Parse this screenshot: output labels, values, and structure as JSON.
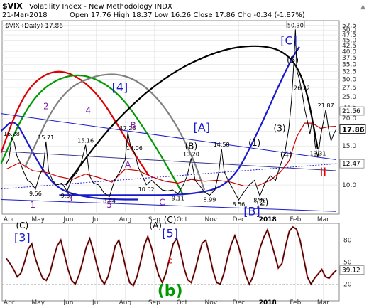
{
  "header": {
    "symbol": "$VIX",
    "title": "Volatility Index - New Methodology INDX",
    "date": "21-Mar-2018",
    "quote": "Open 17.76 High 18.37 Low 16.26 Close 17.86 Chg -0.34 (-1.87%)",
    "legend": "$VIX (Daily) 17.86",
    "up_arrow": "▲"
  },
  "colors": {
    "price": "#000000",
    "blue": "#0000cc",
    "red": "#dd0000",
    "green": "#009900",
    "gray": "#808080",
    "black": "#000000",
    "slate": "#3a3a8a",
    "ma": "#cc0000",
    "osc": "#000000"
  },
  "chart_data": [
    {
      "type": "line",
      "title": "$VIX Volatility Index - New Methodology INDX",
      "series_label": "$VIX (Daily) 17.86",
      "x_ticks": [
        "Apr",
        "May",
        "Jun",
        "Jul",
        "Aug",
        "Sep",
        "Oct",
        "Nov",
        "Dec",
        "2018",
        "Feb",
        "Mar"
      ],
      "y_ticks": [
        10.0,
        12.5,
        15.0,
        17.5,
        20.0,
        22.5,
        25.0,
        27.5,
        30.0,
        32.5,
        35.0,
        37.5,
        40.0,
        42.5,
        45.0,
        47.5,
        50.0,
        52.5
      ],
      "y_tick_labels": [
        "10.0",
        "12.5",
        "15.0",
        "17.5",
        "20.0",
        "22.5",
        "25.0",
        "27.5",
        "30.0",
        "32.5",
        "35.0",
        "37.5",
        "40.0",
        "42.5",
        "45.0",
        "47.5",
        "50.0",
        "52.5"
      ],
      "ylim": [
        7.5,
        53.5
      ],
      "scale": "log",
      "grid": true,
      "price_points": [
        [
          0,
          12.5
        ],
        [
          2,
          13.2
        ],
        [
          4,
          16.28
        ],
        [
          6,
          15.5
        ],
        [
          8,
          13.5
        ],
        [
          10,
          12.8
        ],
        [
          13,
          11.5
        ],
        [
          16,
          10.5
        ],
        [
          19,
          10.2
        ],
        [
          22,
          9.56
        ],
        [
          25,
          11.0
        ],
        [
          28,
          12.0
        ],
        [
          30,
          15.71
        ],
        [
          32,
          11.5
        ],
        [
          35,
          10.5
        ],
        [
          38,
          10.0
        ],
        [
          42,
          10.2
        ],
        [
          46,
          9.37
        ],
        [
          50,
          10.8
        ],
        [
          54,
          11.5
        ],
        [
          57,
          12.8
        ],
        [
          60,
          15.16
        ],
        [
          63,
          11.0
        ],
        [
          66,
          10.2
        ],
        [
          70,
          10.0
        ],
        [
          74,
          9.2
        ],
        [
          78,
          8.84
        ],
        [
          82,
          10.5
        ],
        [
          86,
          11.5
        ],
        [
          90,
          13.0
        ],
        [
          92,
          17.28
        ],
        [
          94,
          15.0
        ],
        [
          97,
          14.06
        ],
        [
          100,
          12.0
        ],
        [
          103,
          11.0
        ],
        [
          106,
          10.02
        ],
        [
          110,
          10.5
        ],
        [
          114,
          10.0
        ],
        [
          118,
          9.5
        ],
        [
          122,
          9.4
        ],
        [
          126,
          9.5
        ],
        [
          130,
          9.11
        ],
        [
          134,
          10.0
        ],
        [
          137,
          11.0
        ],
        [
          140,
          13.2
        ],
        [
          143,
          10.5
        ],
        [
          146,
          10.0
        ],
        [
          150,
          9.3
        ],
        [
          154,
          8.99
        ],
        [
          158,
          9.5
        ],
        [
          161,
          11.5
        ],
        [
          163,
          14.58
        ],
        [
          165,
          11.5
        ],
        [
          168,
          10.5
        ],
        [
          172,
          9.5
        ],
        [
          176,
          8.56
        ],
        [
          180,
          9.3
        ],
        [
          184,
          10.0
        ],
        [
          188,
          10.5
        ],
        [
          192,
          8.92
        ],
        [
          196,
          10.2
        ],
        [
          200,
          11.0
        ],
        [
          204,
          10.5
        ],
        [
          208,
          12.5
        ],
        [
          211,
          14.0
        ],
        [
          214,
          18.0
        ],
        [
          216,
          24.0
        ],
        [
          218,
          37.0
        ],
        [
          219,
          50.3
        ],
        [
          220,
          33.0
        ],
        [
          222,
          30.0
        ],
        [
          224,
          26.22
        ],
        [
          226,
          22.0
        ],
        [
          228,
          19.5
        ],
        [
          230,
          17.0
        ],
        [
          232,
          20.0
        ],
        [
          234,
          15.0
        ],
        [
          236,
          13.31
        ],
        [
          238,
          16.5
        ],
        [
          240,
          19.0
        ],
        [
          242,
          21.87
        ],
        [
          244,
          18.0
        ],
        [
          246,
          15.8
        ],
        [
          248,
          17.0
        ],
        [
          250,
          17.86
        ]
      ],
      "moving_average": [
        [
          0,
          11.8
        ],
        [
          10,
          12.6
        ],
        [
          20,
          11.6
        ],
        [
          30,
          11.4
        ],
        [
          40,
          10.9
        ],
        [
          50,
          10.6
        ],
        [
          60,
          11.2
        ],
        [
          70,
          10.8
        ],
        [
          80,
          10.3
        ],
        [
          90,
          11.8
        ],
        [
          100,
          11.6
        ],
        [
          110,
          10.9
        ],
        [
          120,
          10.4
        ],
        [
          130,
          10.2
        ],
        [
          140,
          10.6
        ],
        [
          150,
          10.4
        ],
        [
          160,
          10.5
        ],
        [
          170,
          10.3
        ],
        [
          180,
          9.9
        ],
        [
          190,
          9.9
        ],
        [
          200,
          10.5
        ],
        [
          208,
          11.5
        ],
        [
          214,
          12.8
        ],
        [
          220,
          16.5
        ],
        [
          226,
          19.0
        ],
        [
          232,
          19.0
        ],
        [
          238,
          18.0
        ],
        [
          244,
          18.3
        ],
        [
          250,
          18.4
        ]
      ],
      "trendlines": [
        {
          "name": "upper-channel",
          "color": "blue",
          "points": [
            [
              -4,
              21.0
            ],
            [
              250,
              13.0
            ]
          ]
        },
        {
          "name": "lower-channel",
          "color": "blue",
          "points": [
            [
              -4,
              8.6
            ],
            [
              250,
              7.6
            ]
          ]
        },
        {
          "name": "dotted-support",
          "color": "blue",
          "dashed": true,
          "points": [
            [
              -4,
              9.6
            ],
            [
              250,
              12.47
            ]
          ]
        },
        {
          "name": "slate-upper",
          "color": "slate",
          "points": [
            [
              -4,
              14.2
            ],
            [
              250,
              11.6
            ]
          ]
        }
      ],
      "cycle_arcs": [
        {
          "name": "blue-arc-1",
          "color": "blue",
          "points": [
            [
              -4,
              17.5
            ],
            [
              6,
              20.0
            ],
            [
              16,
              15.5
            ],
            [
              28,
              11.5
            ],
            [
              40,
              9.5
            ],
            [
              60,
              8.8
            ],
            [
              80,
              8.6
            ],
            [
              100,
              8.6
            ]
          ]
        },
        {
          "name": "red-arc",
          "color": "red",
          "points": [
            [
              -4,
              14.0
            ],
            [
              8,
              22.0
            ],
            [
              20,
              29.0
            ],
            [
              36,
              33.0
            ],
            [
              52,
              31.5
            ],
            [
              70,
              25.5
            ],
            [
              86,
              18.0
            ],
            [
              98,
              13.5
            ],
            [
              108,
              11.0
            ]
          ]
        },
        {
          "name": "green-arc",
          "color": "green",
          "points": [
            [
              -4,
              12.5
            ],
            [
              16,
              23.0
            ],
            [
              36,
              30.0
            ],
            [
              60,
              32.0
            ],
            [
              86,
              26.0
            ],
            [
              110,
              16.0
            ],
            [
              126,
              11.0
            ],
            [
              134,
              9.0
            ]
          ]
        },
        {
          "name": "gray-arc",
          "color": "gray",
          "points": [
            [
              14,
              12.0
            ],
            [
              40,
              26.0
            ],
            [
              70,
              32.0
            ],
            [
              96,
              31.0
            ],
            [
              120,
              23.0
            ],
            [
              140,
              14.0
            ],
            [
              150,
              9.5
            ]
          ]
        },
        {
          "name": "black-arc",
          "color": "black",
          "points": [
            [
              45,
              10.0
            ],
            [
              80,
              19.0
            ],
            [
              120,
              31.0
            ],
            [
              160,
              40.5
            ],
            [
              190,
              43.0
            ],
            [
              212,
              40.0
            ],
            [
              226,
              30.0
            ],
            [
              236,
              14.5
            ]
          ]
        },
        {
          "name": "blue-arc-2",
          "color": "blue",
          "points": [
            [
              40,
              9.0
            ],
            [
              90,
              9.0
            ],
            [
              140,
              9.0
            ],
            [
              170,
              10.0
            ],
            [
              190,
              17.0
            ],
            [
              205,
              27.0
            ],
            [
              216,
              37.0
            ],
            [
              222,
              42.0
            ]
          ]
        }
      ],
      "price_labels": [
        {
          "text": "16.28",
          "x": 4,
          "y": 16.28
        },
        {
          "text": "15.71",
          "x": 30,
          "y": 15.71
        },
        {
          "text": "9.56",
          "x": 22,
          "y": 9.56
        },
        {
          "text": "15.16",
          "x": 60,
          "y": 15.16
        },
        {
          "text": "9.37",
          "x": 46,
          "y": 9.37
        },
        {
          "text": "8.84",
          "x": 78,
          "y": 8.84
        },
        {
          "text": "17.28",
          "x": 92,
          "y": 17.28
        },
        {
          "text": "14.06",
          "x": 97,
          "y": 14.06
        },
        {
          "text": "10.02",
          "x": 106,
          "y": 10.02
        },
        {
          "text": "13.20",
          "x": 140,
          "y": 13.2
        },
        {
          "text": "9.11",
          "x": 130,
          "y": 9.11
        },
        {
          "text": "8.99",
          "x": 154,
          "y": 8.99
        },
        {
          "text": "14.58",
          "x": 163,
          "y": 14.58
        },
        {
          "text": "8.56",
          "x": 176,
          "y": 8.56
        },
        {
          "text": "8.92",
          "x": 192,
          "y": 8.92
        },
        {
          "text": "50.30",
          "x": 219,
          "y": 50.3
        },
        {
          "text": "26.22",
          "x": 224,
          "y": 26.22
        },
        {
          "text": "21.87",
          "x": 242,
          "y": 21.87
        },
        {
          "text": "13.31",
          "x": 236,
          "y": 13.31
        }
      ],
      "wave_labels": [
        {
          "text": "1",
          "color": "purple",
          "x": 20,
          "y": 7.9
        },
        {
          "text": "2",
          "color": "purple",
          "x": 30,
          "y": 22.0
        },
        {
          "text": "3",
          "color": "purple",
          "x": 48,
          "y": 8.4
        },
        {
          "text": "4",
          "color": "purple",
          "x": 62,
          "y": 21.0
        },
        {
          "text": "5",
          "color": "purple",
          "x": 78,
          "y": 7.9
        },
        {
          "text": "[4]",
          "color": "blue",
          "x": 86,
          "y": 26.5
        },
        {
          "text": "A",
          "color": "purple",
          "x": 92,
          "y": 12.0
        },
        {
          "text": "B",
          "color": "purple",
          "x": 96,
          "y": 18.0
        },
        {
          "text": "C",
          "color": "purple",
          "x": 118,
          "y": 8.1
        },
        {
          "text": "[A]",
          "color": "blue",
          "x": 148,
          "y": 17.5
        },
        {
          "text": "(B)",
          "color": "black",
          "x": 140,
          "y": 14.5
        },
        {
          "text": "(1)",
          "color": "black",
          "x": 188,
          "y": 15.0
        },
        {
          "text": "(2)",
          "color": "black",
          "x": 194,
          "y": 8.1
        },
        {
          "text": "(3)",
          "color": "black",
          "x": 207,
          "y": 17.5
        },
        {
          "text": "(4)",
          "color": "black",
          "x": 212,
          "y": 13.3
        },
        {
          "text": "(5)",
          "color": "black",
          "x": 217,
          "y": 35.5
        },
        {
          "text": "[C]",
          "color": "blue",
          "x": 214,
          "y": 43.0
        },
        {
          "text": "[B]",
          "color": "blue",
          "x": 186,
          "y": 7.3
        },
        {
          "text": "II",
          "color": "red",
          "x": 240,
          "y": 11.0
        }
      ],
      "right_value_labels": [
        {
          "text": "21.56",
          "y": 21.56,
          "style": "box"
        },
        {
          "text": "17.86",
          "y": 17.86,
          "style": "tag"
        },
        {
          "text": "12.47",
          "y": 12.47,
          "style": "box"
        }
      ]
    },
    {
      "type": "line",
      "title": "Oscillator",
      "x_ticks": [
        "Apr",
        "May",
        "Jun",
        "Jul",
        "Aug",
        "Sep",
        "Oct",
        "Nov",
        "Dec",
        "2018",
        "Feb",
        "Mar"
      ],
      "y_ticks": [
        20,
        50,
        80
      ],
      "y_tick_labels": [
        "20",
        "50",
        "80"
      ],
      "ylim": [
        0,
        100
      ],
      "grid": true,
      "reference_lines": [
        80,
        50,
        20
      ],
      "current_value": "39.12",
      "values": [
        55,
        48,
        40,
        30,
        35,
        50,
        68,
        75,
        55,
        40,
        28,
        25,
        35,
        55,
        72,
        80,
        60,
        40,
        25,
        20,
        32,
        50,
        70,
        82,
        65,
        45,
        28,
        20,
        30,
        50,
        72,
        80,
        62,
        40,
        22,
        18,
        30,
        50,
        72,
        85,
        70,
        50,
        32,
        22,
        35,
        55,
        75,
        82,
        64,
        42,
        26,
        22,
        38,
        58,
        76,
        80,
        60,
        38,
        22,
        20,
        35,
        56,
        74,
        86,
        72,
        52,
        32,
        20,
        30,
        50,
        70,
        84,
        94,
        78,
        60,
        42,
        48,
        72,
        92,
        98,
        95,
        80,
        55,
        30,
        20,
        28,
        34,
        40,
        30,
        28,
        34,
        39
      ],
      "wave_labels": [
        {
          "text": "(C)",
          "color": "black",
          "x": 12,
          "y": 96
        },
        {
          "text": "[3]",
          "color": "blue",
          "x": 12,
          "y": 78
        },
        {
          "text": "(A)",
          "color": "black",
          "x": 113,
          "y": 96
        },
        {
          "text": "(C)",
          "color": "black",
          "x": 124,
          "y": 104
        },
        {
          "text": "[5]",
          "color": "blue",
          "x": 124,
          "y": 84
        },
        {
          "text": "c",
          "color": "red",
          "x": 124,
          "y": 48
        },
        {
          "text": "(b)",
          "color": "green",
          "x": 124,
          "y": 4
        }
      ]
    }
  ]
}
